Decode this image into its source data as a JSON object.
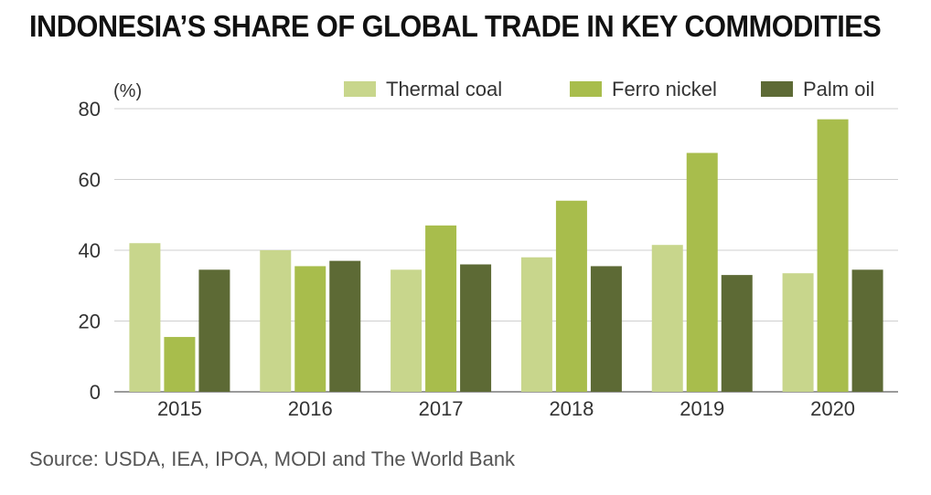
{
  "chart_data": {
    "type": "bar",
    "title": "INDONESIA’S SHARE OF GLOBAL TRADE IN KEY COMMODITIES",
    "ylabel": "(%)",
    "xlabel": "",
    "categories": [
      "2015",
      "2016",
      "2017",
      "2018",
      "2019",
      "2020"
    ],
    "ylim": [
      0,
      80
    ],
    "yticks": [
      0,
      20,
      40,
      60,
      80
    ],
    "grid": true,
    "legend_position": "top-right",
    "series": [
      {
        "name": "Thermal coal",
        "color": "#c8d68c",
        "values": [
          42,
          40,
          34.5,
          38,
          41.5,
          33.5
        ]
      },
      {
        "name": "Ferro nickel",
        "color": "#a8bd4c",
        "values": [
          15.5,
          35.5,
          47,
          54,
          67.5,
          77
        ]
      },
      {
        "name": "Palm oil",
        "color": "#5d6a35",
        "values": [
          34.5,
          37,
          36,
          35.5,
          33,
          34.5
        ]
      }
    ],
    "source": "Source: USDA, IEA, IPOA, MODI and The World Bank"
  }
}
